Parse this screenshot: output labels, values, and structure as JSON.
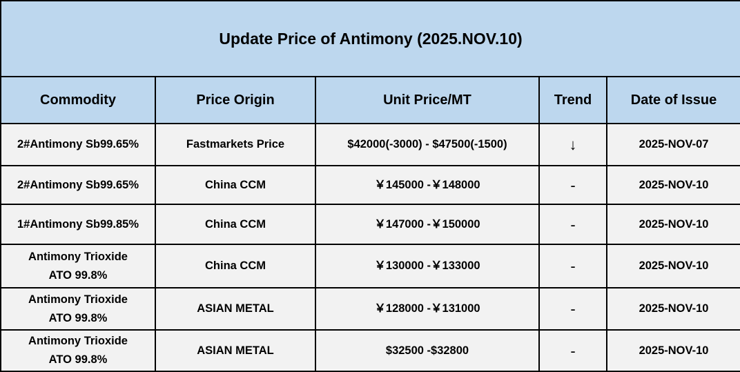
{
  "title": "Update Price of Antimony (2025.NOV.10)",
  "columns": [
    "Commodity",
    "Price Origin",
    "Unit Price/MT",
    "Trend",
    "Date of Issue"
  ],
  "rows": [
    {
      "commodity": [
        "2#Antimony  Sb99.65%"
      ],
      "origin": "Fastmarkets Price",
      "price": "$42000(-3000) - $47500(-1500)",
      "trend": "↓",
      "trend_icon": "arrow-down-icon",
      "date": "2025-NOV-07"
    },
    {
      "commodity": [
        "2#Antimony  Sb99.65%"
      ],
      "origin": "China CCM",
      "price": "￥145000 -￥148000",
      "trend": "-",
      "date": "2025-NOV-10"
    },
    {
      "commodity": [
        "1#Antimony  Sb99.85%"
      ],
      "origin": "China CCM",
      "price": "￥147000 -￥150000",
      "trend": "-",
      "date": "2025-NOV-10"
    },
    {
      "commodity": [
        "Antimony Trioxide",
        "ATO 99.8%"
      ],
      "origin": "China CCM",
      "price": "￥130000 -￥133000",
      "trend": "-",
      "date": "2025-NOV-10"
    },
    {
      "commodity": [
        "Antimony Trioxide",
        "ATO 99.8%"
      ],
      "origin": "ASIAN METAL",
      "price": "￥128000 -￥131000",
      "trend": "-",
      "date": "2025-NOV-10"
    },
    {
      "commodity": [
        "Antimony Trioxide",
        "ATO 99.8%"
      ],
      "origin": "ASIAN METAL",
      "price": "$32500 -$32800",
      "trend": "-",
      "date": "2025-NOV-10"
    }
  ],
  "colors": {
    "header_bg": "#bdd7ee",
    "row_bg": "#f2f2f2",
    "border": "#000000"
  }
}
